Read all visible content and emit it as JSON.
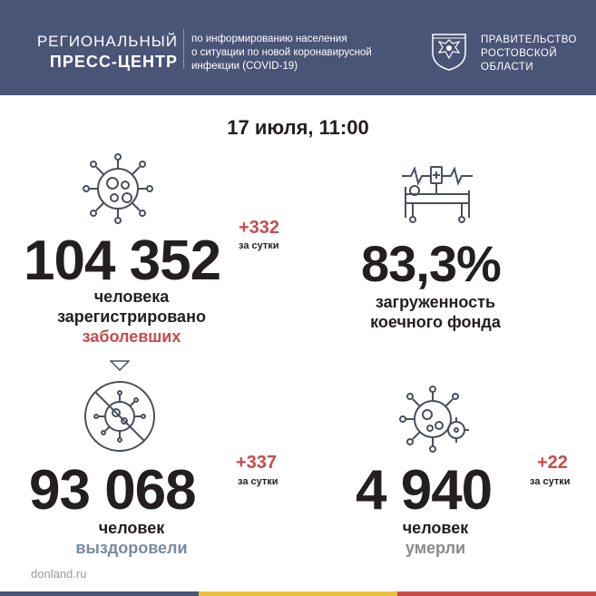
{
  "header": {
    "press_center_line1": "РЕГИОНАЛЬНЫЙ",
    "press_center_line2": "ПРЕСС-ЦЕНТР",
    "info_lines": [
      "по информированию населения",
      "о ситуации по новой коронавирусной",
      "инфекции (COVID-19)"
    ],
    "gov_lines": [
      "ПРАВИТЕЛЬСТВО",
      "РОСТОВСКОЙ",
      "ОБЛАСТИ"
    ]
  },
  "date": "17 июля, 11:00",
  "cases": {
    "value": "104 352",
    "delta": "+332",
    "per_day": "за сутки",
    "label_line1": "человека",
    "label_line2": "зарегистрировано",
    "label_line3": "заболевших"
  },
  "beds": {
    "value": "83,3%",
    "label_line1": "загруженность",
    "label_line2": "коечного фонда"
  },
  "recovered": {
    "value": "93 068",
    "delta": "+337",
    "per_day": "за сутки",
    "label_line1": "человек",
    "label_line2": "выздоровели"
  },
  "deaths": {
    "value": "4 940",
    "delta": "+22",
    "per_day": "за сутки",
    "label_line1": "человек",
    "label_line2": "умерли"
  },
  "footer": {
    "site": "donland.ru"
  },
  "colors": {
    "header_bg": "#4a5476",
    "accent_red": "#c94b4b",
    "accent_blue": "#4a5476",
    "accent_yellow": "#e8c23a"
  }
}
